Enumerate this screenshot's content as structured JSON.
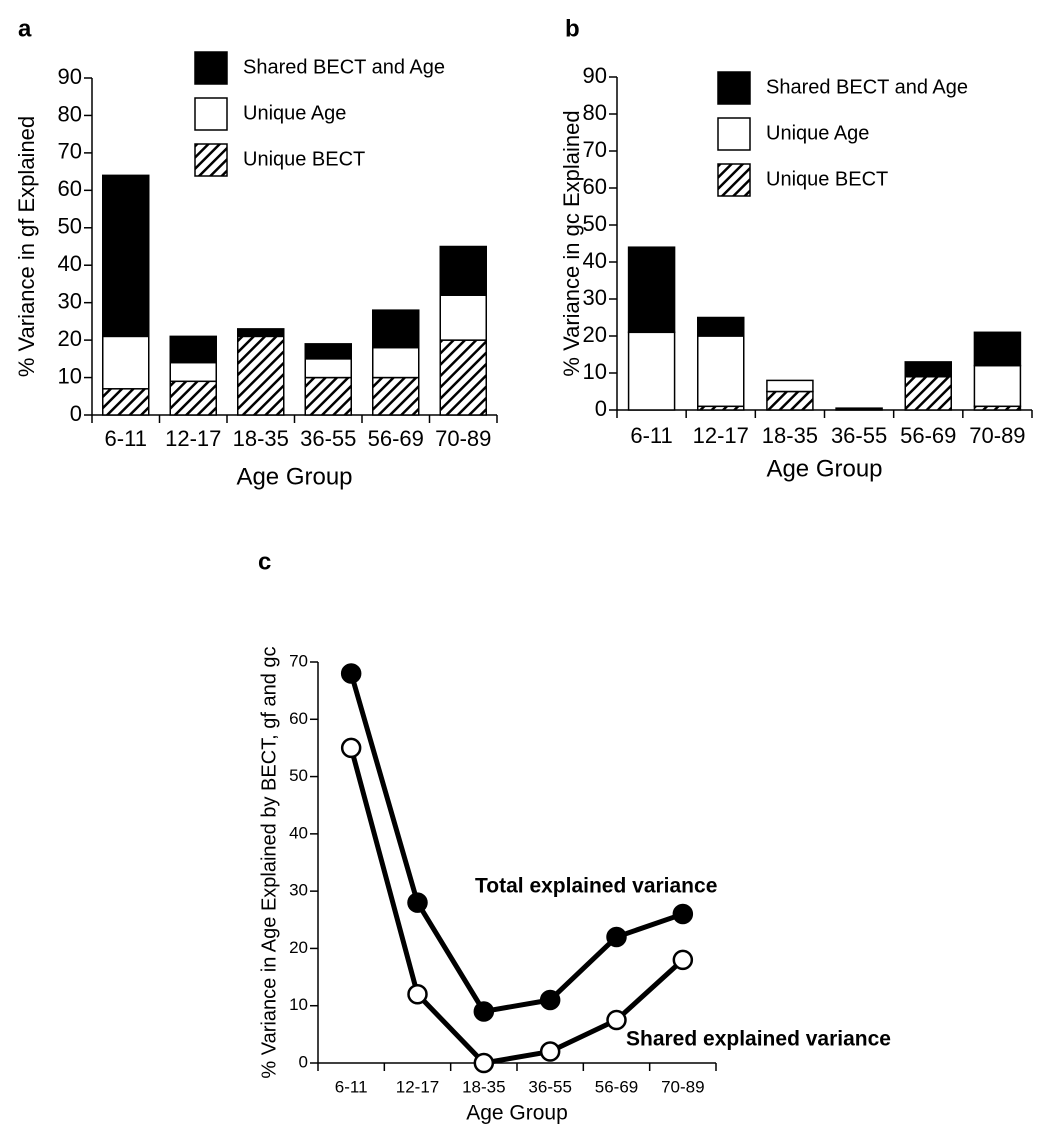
{
  "chart_data": [
    {
      "type": "bar",
      "stacked": true,
      "panel_label": "a",
      "x_label": "Age Group",
      "y_label": "% Variance in gf Explained",
      "categories": [
        "6-11",
        "12-17",
        "18-35",
        "36-55",
        "56-69",
        "70-89"
      ],
      "series": [
        {
          "name": "Unique BECT",
          "color": "#000000",
          "pattern": "hatch",
          "values": [
            7,
            9,
            21,
            10,
            10,
            20
          ]
        },
        {
          "name": "Unique Age",
          "color": "#ffffff",
          "values": [
            14,
            5,
            0,
            5,
            8,
            12
          ]
        },
        {
          "name": "Shared BECT and Age",
          "color": "#000000",
          "values": [
            43,
            7,
            2,
            4,
            10,
            13
          ]
        }
      ],
      "ylim": [
        0,
        90
      ],
      "yticks": [
        0,
        10,
        20,
        30,
        40,
        50,
        60,
        70,
        80,
        90
      ],
      "legend": "top-right",
      "grid": false
    },
    {
      "type": "bar",
      "stacked": true,
      "panel_label": "b",
      "x_label": "Age Group",
      "y_label": "% Variance in gc Explained",
      "categories": [
        "6-11",
        "12-17",
        "18-35",
        "36-55",
        "56-69",
        "70-89"
      ],
      "series": [
        {
          "name": "Unique BECT",
          "color": "#000000",
          "pattern": "hatch",
          "values": [
            0,
            1,
            5,
            0,
            9,
            1
          ]
        },
        {
          "name": "Unique Age",
          "color": "#ffffff",
          "values": [
            21,
            19,
            3,
            0,
            0,
            11
          ]
        },
        {
          "name": "Shared BECT and Age",
          "color": "#000000",
          "values": [
            23,
            5,
            0,
            0.5,
            4,
            9
          ]
        }
      ],
      "ylim": [
        0,
        90
      ],
      "yticks": [
        0,
        10,
        20,
        30,
        40,
        50,
        60,
        70,
        80,
        90
      ],
      "legend": "top-right",
      "grid": false
    },
    {
      "type": "line",
      "panel_label": "c",
      "x_label": "Age Group",
      "y_label": "% Variance in Age Explained by BECT, gf and gc",
      "categories": [
        "6-11",
        "12-17",
        "18-35",
        "36-55",
        "56-69",
        "70-89"
      ],
      "series": [
        {
          "name": "Total explained variance",
          "color": "#000000",
          "marker_fill": "#000000",
          "values": [
            68,
            28,
            9,
            11,
            22,
            26
          ]
        },
        {
          "name": "Shared explained variance",
          "color": "#000000",
          "marker_fill": "#ffffff",
          "values": [
            55,
            12,
            0,
            2,
            7.5,
            18
          ]
        }
      ],
      "ylim": [
        0,
        70
      ],
      "yticks": [
        0,
        10,
        20,
        30,
        40,
        50,
        60,
        70
      ],
      "grid": false
    }
  ]
}
